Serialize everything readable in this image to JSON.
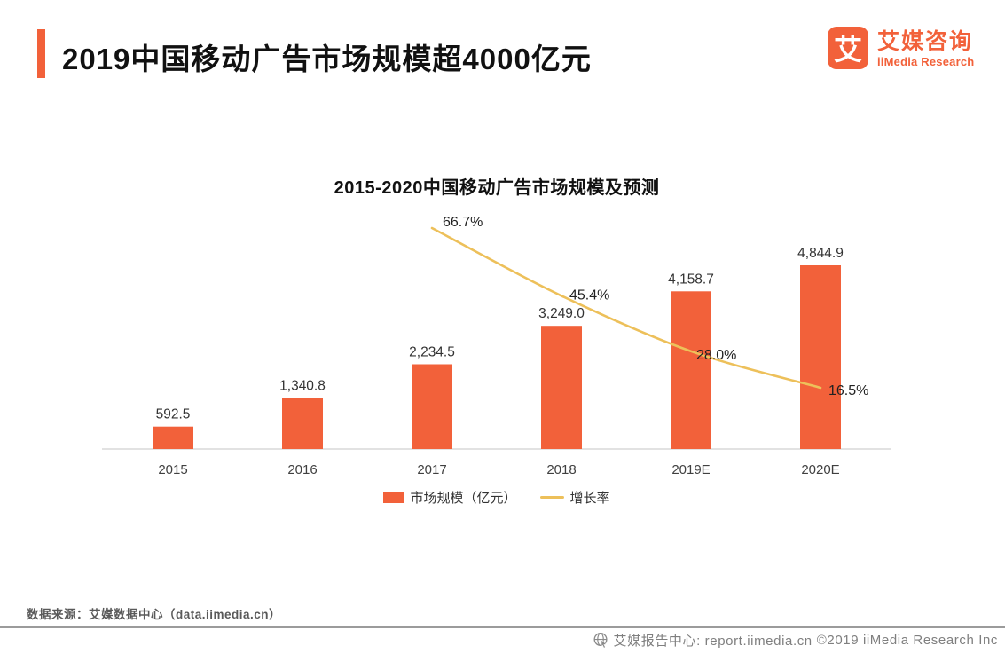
{
  "header": {
    "title": "2019中国移动广告市场规模超4000亿元",
    "brand": {
      "logo_glyph": "艾",
      "name_cn": "艾媒咨询",
      "name_en": "iiMedia Research"
    }
  },
  "chart_data": {
    "type": "bar",
    "title": "2015-2020中国移动广告市场规模及预测",
    "categories": [
      "2015",
      "2016",
      "2017",
      "2018",
      "2019E",
      "2020E"
    ],
    "series": [
      {
        "name": "市场规模（亿元）",
        "type": "bar",
        "values": [
          592.5,
          1340.8,
          2234.5,
          3249.0,
          4158.7,
          4844.9
        ],
        "labels": [
          "592.5",
          "1,340.8",
          "2,234.5",
          "3,249.0",
          "4,158.7",
          "4,844.9"
        ]
      },
      {
        "name": "增长率",
        "type": "line",
        "values": [
          null,
          null,
          66.7,
          45.4,
          28.0,
          16.5
        ],
        "labels": [
          null,
          null,
          "66.7%",
          "45.4%",
          "28.0%",
          "16.5%"
        ]
      }
    ],
    "ylabel": "",
    "xlabel": "",
    "ylim": [
      0,
      4844.9
    ],
    "gridlines": false,
    "legend_position": "bottom"
  },
  "colors": {
    "bar": "#F2613A",
    "line": "#EDC05A",
    "axis": "#D9D9D9",
    "label_dark": "#333333",
    "accent": "#F2613A"
  },
  "source": {
    "note": "数据来源：艾媒数据中心（data.iimedia.cn）"
  },
  "footer": {
    "site": "艾媒报告中心: report.iimedia.cn",
    "copyright": "©2019  iiMedia Research Inc"
  }
}
